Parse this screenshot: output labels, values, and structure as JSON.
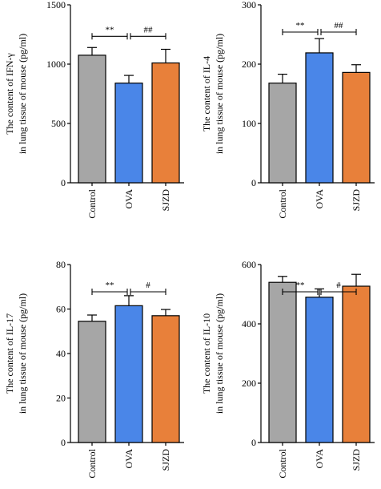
{
  "chart_data": [
    {
      "type": "bar",
      "categories": [
        "Control",
        "OVA",
        "SJZD"
      ],
      "values": [
        1075,
        840,
        1010
      ],
      "errors": [
        65,
        65,
        115
      ],
      "ylabel_lines": [
        "The content of IFN-γ",
        "in lung tissue of mouse (pg/ml)"
      ],
      "ylim": [
        0,
        1500
      ],
      "yticks": [
        0,
        500,
        1000,
        1500
      ],
      "significance": [
        {
          "from": 0,
          "to": 1,
          "label": "**"
        },
        {
          "from": 1,
          "to": 2,
          "label": "##"
        }
      ]
    },
    {
      "type": "bar",
      "categories": [
        "Control",
        "OVA",
        "SJZD"
      ],
      "values": [
        168,
        219,
        186
      ],
      "errors": [
        15,
        24,
        13
      ],
      "ylabel_lines": [
        "The content of IL-4",
        "in lung tissue of mouse (pg/ml)"
      ],
      "ylim": [
        0,
        300
      ],
      "yticks": [
        0,
        100,
        200,
        300
      ],
      "significance": [
        {
          "from": 0,
          "to": 1,
          "label": "**"
        },
        {
          "from": 1,
          "to": 2,
          "label": "##"
        }
      ]
    },
    {
      "type": "bar",
      "categories": [
        "Control",
        "OVA",
        "SJZD"
      ],
      "values": [
        54.5,
        61.5,
        57
      ],
      "errors": [
        2.8,
        4.5,
        2.8
      ],
      "ylabel_lines": [
        "The content of IL-17",
        "in lung tissue of mouse (pg/ml)"
      ],
      "ylim": [
        0,
        80
      ],
      "yticks": [
        0,
        20,
        40,
        60,
        80
      ],
      "significance": [
        {
          "from": 0,
          "to": 1,
          "label": "**"
        },
        {
          "from": 1,
          "to": 2,
          "label": "#"
        }
      ]
    },
    {
      "type": "bar",
      "categories": [
        "Control",
        "OVA",
        "SJZD"
      ],
      "values": [
        540,
        490,
        527
      ],
      "errors": [
        20,
        28,
        40
      ],
      "ylabel_lines": [
        "The content of IL-10",
        "in lung tissue of mouse (pg/ml)"
      ],
      "ylim": [
        0,
        600
      ],
      "yticks": [
        0,
        200,
        400,
        600
      ],
      "significance": [
        {
          "from": 0,
          "to": 1,
          "label": "**"
        },
        {
          "from": 1,
          "to": 2,
          "label": "#"
        }
      ]
    }
  ],
  "colors": {
    "bars": [
      "#a6a6a6",
      "#4a86e8",
      "#e8803a"
    ],
    "stroke": "#000000"
  }
}
